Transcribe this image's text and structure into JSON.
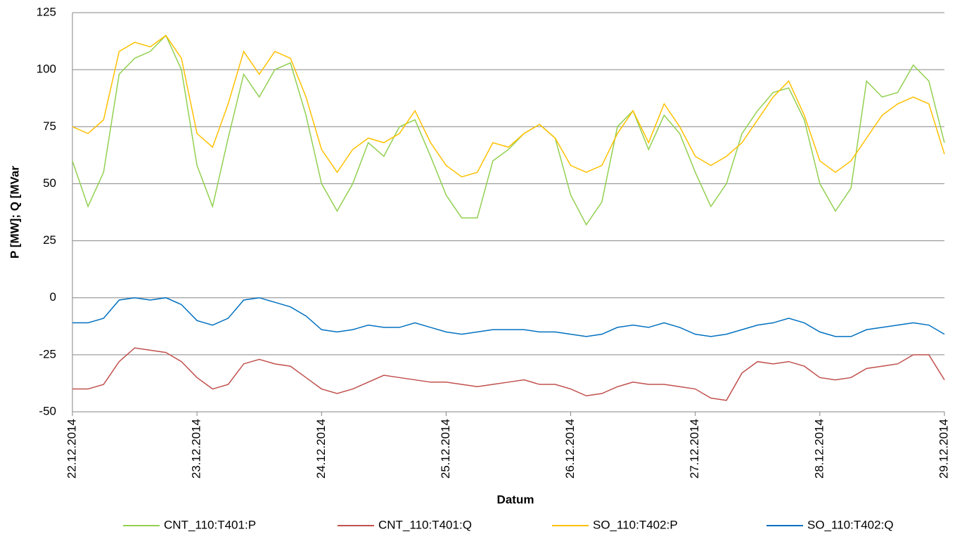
{
  "chart_data": {
    "type": "line",
    "y_label": "P [MW]; Q [MVar",
    "x_label": "Datum",
    "x": [
      0,
      0.125,
      0.25,
      0.375,
      0.5,
      0.625,
      0.75,
      0.875,
      1,
      1.125,
      1.25,
      1.375,
      1.5,
      1.625,
      1.75,
      1.875,
      2,
      2.125,
      2.25,
      2.375,
      2.5,
      2.625,
      2.75,
      2.875,
      3,
      3.125,
      3.25,
      3.375,
      3.5,
      3.625,
      3.75,
      3.875,
      4,
      4.125,
      4.25,
      4.375,
      4.5,
      4.625,
      4.75,
      4.875,
      5,
      5.125,
      5.25,
      5.375,
      5.5,
      5.625,
      5.75,
      5.875,
      6,
      6.125,
      6.25,
      6.375,
      6.5,
      6.625,
      6.75,
      6.875,
      7
    ],
    "xlim": [
      0,
      7
    ],
    "xticks": [
      {
        "value": 0,
        "label": "22.12.2014"
      },
      {
        "value": 1,
        "label": "23.12.2014"
      },
      {
        "value": 2,
        "label": "24.12.2014"
      },
      {
        "value": 3,
        "label": "25.12.2014"
      },
      {
        "value": 4,
        "label": "26.12.2014"
      },
      {
        "value": 5,
        "label": "27.12.2014"
      },
      {
        "value": 6,
        "label": "28.12.2014"
      },
      {
        "value": 7,
        "label": "29.12.2014"
      }
    ],
    "ylim": [
      -50,
      125
    ],
    "yticks": [
      -50,
      -25,
      0,
      25,
      50,
      75,
      100,
      125
    ],
    "grid": true,
    "legend": "bottom",
    "series": [
      {
        "name": "CNT_110:T401:P",
        "color": "#92d050",
        "values": [
          60,
          40,
          55,
          98,
          105,
          108,
          115,
          100,
          58,
          40,
          70,
          98,
          88,
          100,
          103,
          80,
          50,
          38,
          50,
          68,
          62,
          75,
          78,
          62,
          45,
          35,
          35,
          60,
          65,
          72,
          76,
          70,
          45,
          32,
          42,
          75,
          82,
          65,
          80,
          72,
          55,
          40,
          50,
          72,
          82,
          90,
          92,
          78,
          50,
          38,
          48,
          95,
          88,
          90,
          102,
          95,
          68
        ]
      },
      {
        "name": "CNT_110:T401:Q",
        "color": "#c0504d",
        "values": [
          -40,
          -40,
          -38,
          -28,
          -22,
          -23,
          -24,
          -28,
          -35,
          -40,
          -38,
          -29,
          -27,
          -29,
          -30,
          -35,
          -40,
          -42,
          -40,
          -37,
          -34,
          -35,
          -36,
          -37,
          -37,
          -38,
          -39,
          -38,
          -37,
          -36,
          -38,
          -38,
          -40,
          -43,
          -42,
          -39,
          -37,
          -38,
          -38,
          -39,
          -40,
          -44,
          -45,
          -33,
          -28,
          -29,
          -28,
          -30,
          -35,
          -36,
          -35,
          -31,
          -30,
          -29,
          -25,
          -25,
          -36
        ]
      },
      {
        "name": "SO_110:T402:P",
        "color": "#ffc000",
        "values": [
          75,
          72,
          78,
          108,
          112,
          110,
          115,
          105,
          72,
          66,
          85,
          108,
          98,
          108,
          105,
          88,
          65,
          55,
          65,
          70,
          68,
          72,
          82,
          68,
          58,
          53,
          55,
          68,
          66,
          72,
          76,
          70,
          58,
          55,
          58,
          72,
          82,
          68,
          85,
          75,
          62,
          58,
          62,
          68,
          78,
          88,
          95,
          80,
          60,
          55,
          60,
          70,
          80,
          85,
          88,
          85,
          63
        ]
      },
      {
        "name": "SO_110:T402:Q",
        "color": "#0070c0",
        "values": [
          -11,
          -11,
          -9,
          -1,
          0,
          -1,
          0,
          -3,
          -10,
          -12,
          -9,
          -1,
          0,
          -2,
          -4,
          -8,
          -14,
          -15,
          -14,
          -12,
          -13,
          -13,
          -11,
          -13,
          -15,
          -16,
          -15,
          -14,
          -14,
          -14,
          -15,
          -15,
          -16,
          -17,
          -16,
          -13,
          -12,
          -13,
          -11,
          -13,
          -16,
          -17,
          -16,
          -14,
          -12,
          -11,
          -9,
          -11,
          -15,
          -17,
          -17,
          -14,
          -13,
          -12,
          -11,
          -12,
          -16
        ]
      }
    ]
  }
}
